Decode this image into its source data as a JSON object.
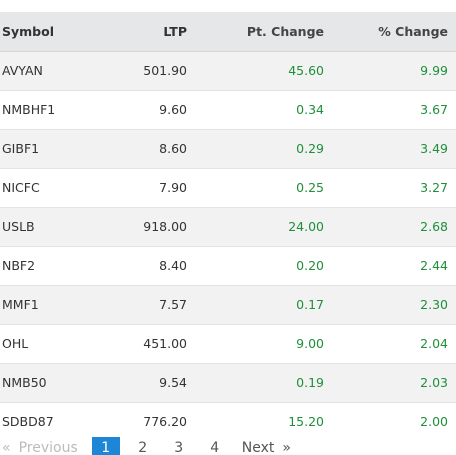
{
  "table": {
    "headers": {
      "symbol": "Symbol",
      "ltp": "LTP",
      "pt_change": "Pt. Change",
      "pct_change": "% Change"
    },
    "rows": [
      {
        "symbol": "AVYAN",
        "ltp": "501.90",
        "pt_change": "45.60",
        "pct_change": "9.99"
      },
      {
        "symbol": "NMBHF1",
        "ltp": "9.60",
        "pt_change": "0.34",
        "pct_change": "3.67"
      },
      {
        "symbol": "GIBF1",
        "ltp": "8.60",
        "pt_change": "0.29",
        "pct_change": "3.49"
      },
      {
        "symbol": "NICFC",
        "ltp": "7.90",
        "pt_change": "0.25",
        "pct_change": "3.27"
      },
      {
        "symbol": "USLB",
        "ltp": "918.00",
        "pt_change": "24.00",
        "pct_change": "2.68"
      },
      {
        "symbol": "NBF2",
        "ltp": "8.40",
        "pt_change": "0.20",
        "pct_change": "2.44"
      },
      {
        "symbol": "MMF1",
        "ltp": "7.57",
        "pt_change": "0.17",
        "pct_change": "2.30"
      },
      {
        "symbol": "OHL",
        "ltp": "451.00",
        "pt_change": "9.00",
        "pct_change": "2.04"
      },
      {
        "symbol": "NMB50",
        "ltp": "9.54",
        "pt_change": "0.19",
        "pct_change": "2.03"
      },
      {
        "symbol": "SDBD87",
        "ltp": "776.20",
        "pt_change": "15.20",
        "pct_change": "2.00"
      }
    ]
  },
  "pagination": {
    "prev_arrow": "«",
    "prev_label": "Previous",
    "pages": [
      "1",
      "2",
      "3",
      "4"
    ],
    "active_page": "1",
    "next_label": "Next",
    "next_arrow": "»"
  },
  "colors": {
    "positive": "#1f8f3a",
    "header_bg": "#e5e7e9",
    "active_page_bg": "#1d86d7"
  }
}
